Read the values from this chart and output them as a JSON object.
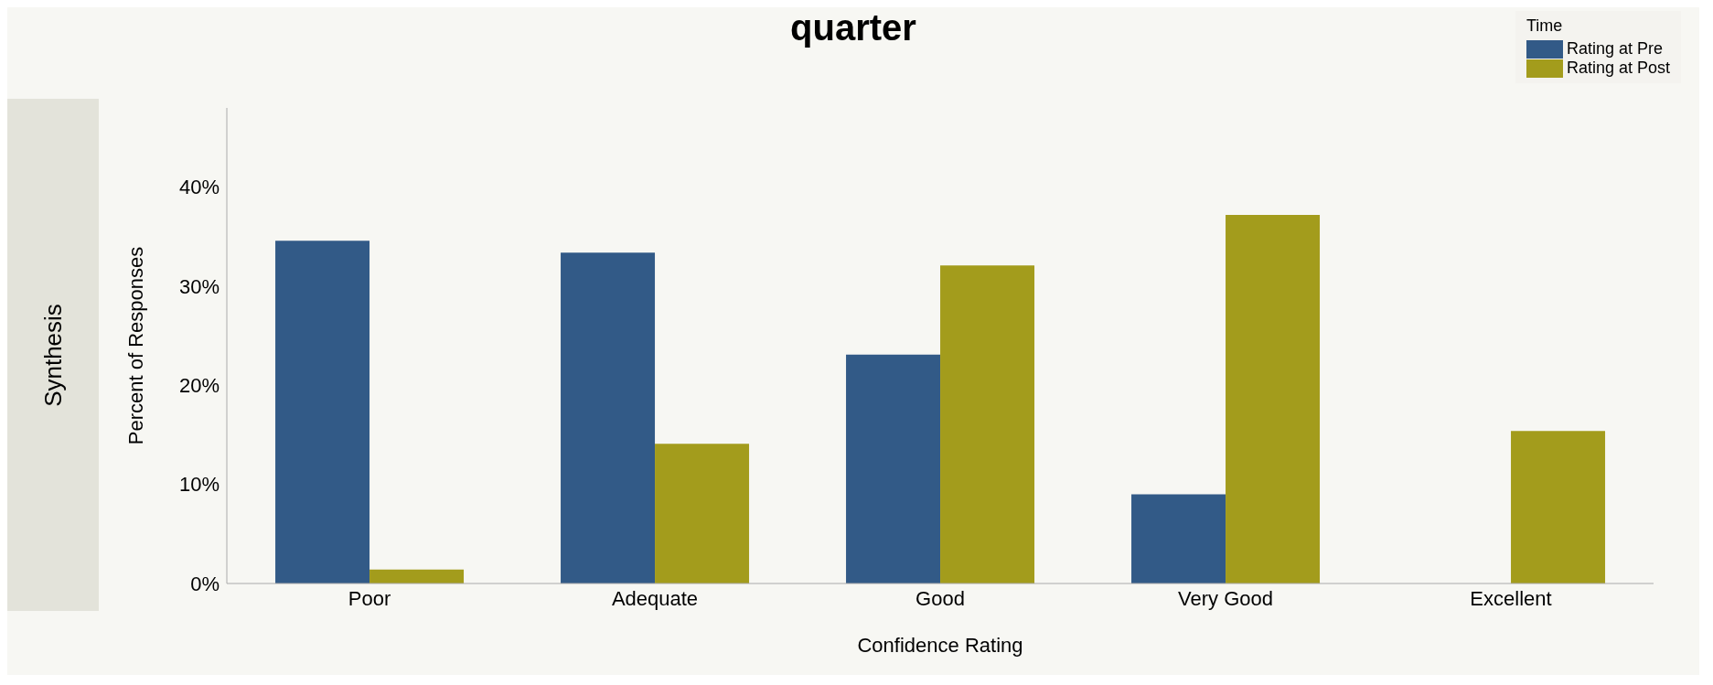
{
  "chart_data": {
    "type": "bar",
    "title": "quarter",
    "annotations": [
      "Synthesis"
    ],
    "xlabel": "Confidence Rating",
    "ylabel": "Percent of Responses",
    "legend_title": "Time",
    "legend": "top right",
    "categories": [
      "Poor",
      "Adequate",
      "Good",
      "Very Good",
      "Excellent"
    ],
    "series": [
      {
        "name": "Rating at Pre",
        "color": "#325a87",
        "values": [
          34.6,
          33.4,
          23.1,
          9.0,
          0
        ]
      },
      {
        "name": "Rating at Post",
        "color": "#a39c1c",
        "values": [
          1.4,
          14.1,
          32.1,
          37.2,
          15.4
        ]
      }
    ],
    "ylim": [
      0,
      48
    ],
    "yticks": [
      {
        "value": 0,
        "label": "0%"
      },
      {
        "value": 10,
        "label": "10%"
      },
      {
        "value": 20,
        "label": "20%"
      },
      {
        "value": 30,
        "label": "30%"
      },
      {
        "value": 40,
        "label": "40%"
      }
    ],
    "grid": false
  }
}
